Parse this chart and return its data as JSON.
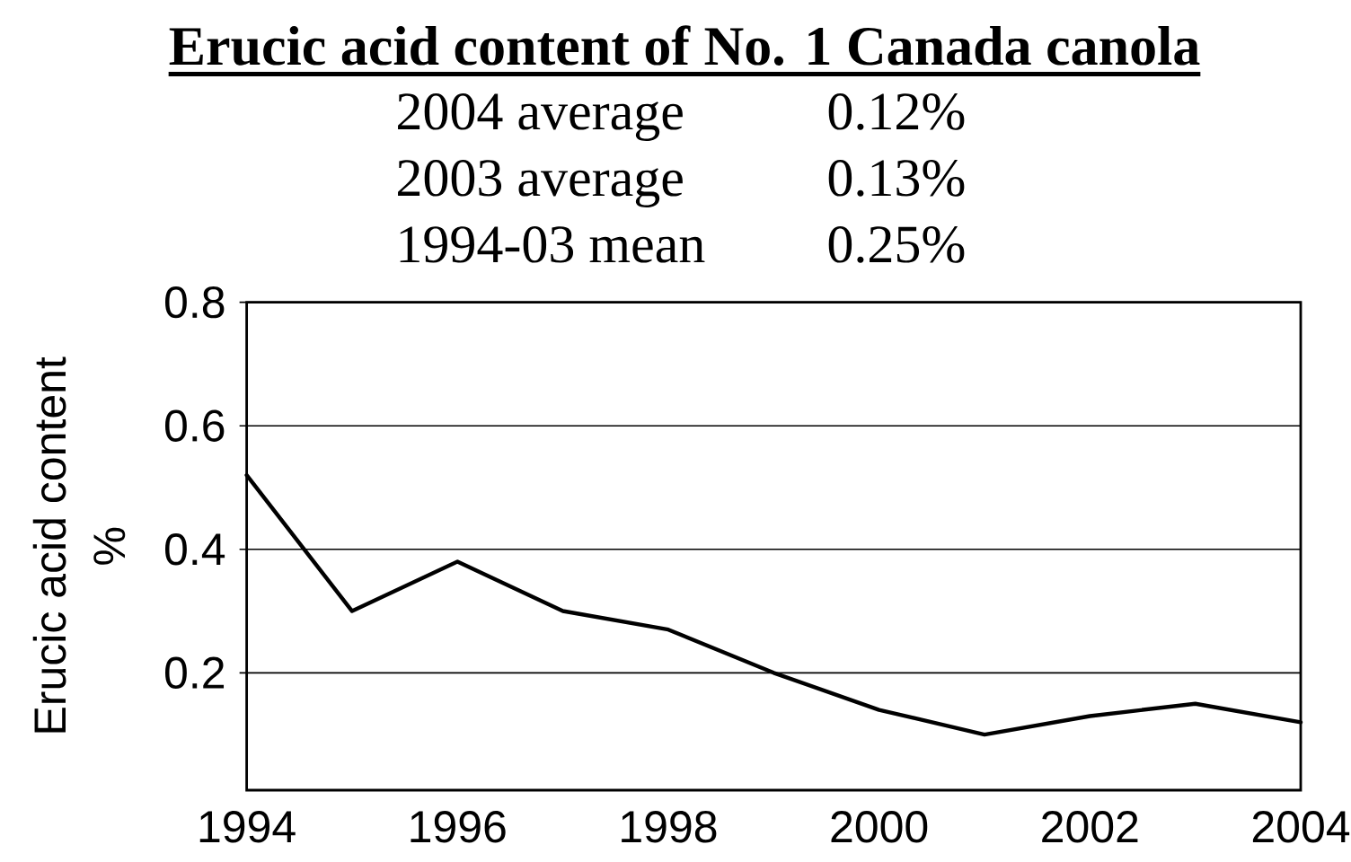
{
  "chart_data": {
    "type": "line",
    "title": "Erucic acid content of No. 1 Canada canola",
    "annotations": [
      "2004 average",
      "0.12%",
      "2003 average",
      "0.13%",
      "1994-03 mean",
      "0.25%"
    ],
    "ylabel": "Erucic acid content %",
    "x": [
      1994,
      1995,
      1996,
      1997,
      1998,
      1999,
      2000,
      2001,
      2002,
      2003,
      2004
    ],
    "series": [
      {
        "color": "#000000",
        "values": [
          0.52,
          0.3,
          0.38,
          0.3,
          0.27,
          0.2,
          0.14,
          0.1,
          0.13,
          0.15,
          0.12
        ]
      }
    ],
    "xlim": [
      1994,
      2004
    ],
    "ylim": [
      0.01,
      0.8
    ],
    "xticks": [
      1994,
      1996,
      1998,
      2000,
      2002,
      2004
    ],
    "yticks": [
      0.2,
      0.4,
      0.6,
      0.8
    ],
    "grid": "y",
    "marker": "none",
    "line_style": "solid"
  }
}
